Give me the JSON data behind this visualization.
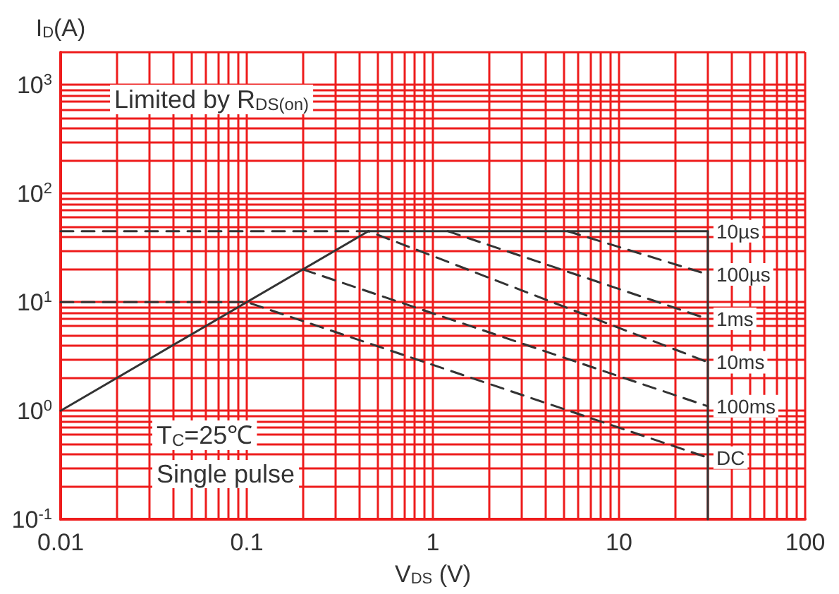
{
  "chart_data": {
    "type": "line",
    "xlabel": "V$_{DS}$ (V)",
    "ylabel": "I$_{D}$(A)",
    "annotations": [
      "Limited by R$_{DS(on)}$",
      "T$_{C}$=25℃",
      "Single pulse"
    ],
    "log": "xy",
    "grid": true,
    "legend": false,
    "marker": "none",
    "xlim": [
      0.01,
      100
    ],
    "ylim": [
      0.1,
      2000
    ],
    "xticks": [
      0.01,
      0.1,
      1,
      10,
      100
    ],
    "yticks": [
      {
        "value": 0.1,
        "label": "10$^{-1}$"
      },
      {
        "value": 1,
        "label": "10$^{0}$"
      },
      {
        "value": 10,
        "label": "10$^{1}$"
      },
      {
        "value": 100,
        "label": "10$^{2}$"
      },
      {
        "value": 1000,
        "label": "10$^{3}$"
      }
    ],
    "series": [
      {
        "color": "#333333",
        "line_style": "solid",
        "x": [
          0.01,
          0.45
        ],
        "values": [
          1,
          45
        ]
      },
      {
        "name": "10µs",
        "color": "#333333",
        "line_style": "solid",
        "x": [
          0.45,
          30
        ],
        "values": [
          45,
          45
        ]
      },
      {
        "name": "100µs",
        "color": "#333333",
        "line_style": "dashed",
        "x": [
          5.3,
          30
        ],
        "values": [
          45,
          18
        ]
      },
      {
        "name": "1ms",
        "color": "#333333",
        "line_style": "dashed",
        "x": [
          1.2,
          30
        ],
        "values": [
          45,
          7
        ]
      },
      {
        "name": "10ms",
        "color": "#333333",
        "line_style": "dashed",
        "x": [
          0.01,
          0.45,
          30
        ],
        "values": [
          45,
          45,
          2.8
        ]
      },
      {
        "name": "100ms",
        "color": "#333333",
        "line_style": "dashed",
        "x": [
          0.2,
          30
        ],
        "values": [
          20,
          1.1
        ]
      },
      {
        "name": "DC",
        "color": "#333333",
        "line_style": "dashed",
        "x": [
          0.01,
          0.1,
          30
        ],
        "values": [
          10,
          10,
          0.37
        ]
      },
      {
        "color": "#333333",
        "line_style": "solid",
        "x": [
          30,
          30
        ],
        "values": [
          45,
          0.1
        ]
      }
    ]
  }
}
